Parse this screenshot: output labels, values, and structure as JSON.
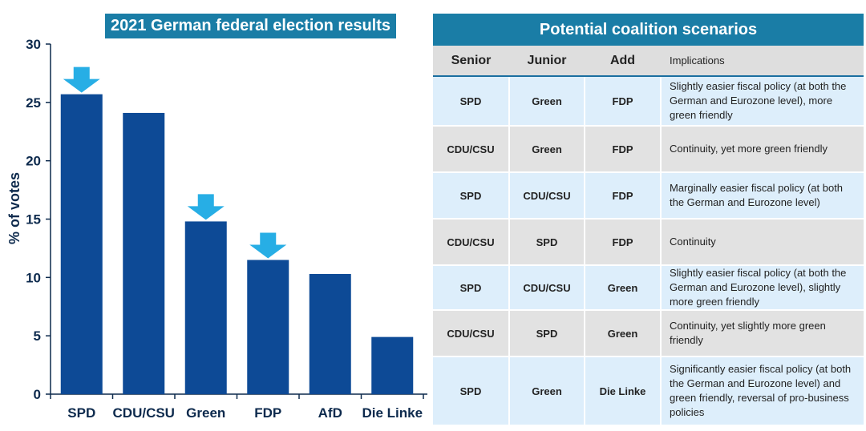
{
  "chart_data": {
    "type": "bar",
    "title": "2021 German federal election results",
    "ylabel": "% of votes",
    "xlabel": "",
    "categories": [
      "SPD",
      "CDU/CSU",
      "Green",
      "FDP",
      "AfD",
      "Die Linke"
    ],
    "values": [
      25.7,
      24.1,
      14.8,
      11.5,
      10.3,
      4.9
    ],
    "ylim": [
      0,
      30
    ],
    "yticks": [
      0,
      5,
      10,
      15,
      20,
      25,
      30
    ],
    "grid": false,
    "bar_color": "#0d4a96",
    "highlighted_categories": [
      "SPD",
      "Green",
      "FDP"
    ],
    "highlight_marker": "down-arrow-icon",
    "highlight_color": "#27aee5"
  },
  "table": {
    "title": "Potential coalition scenarios",
    "headers": {
      "senior": "Senior",
      "junior": "Junior",
      "add": "Add",
      "implications": "Implications"
    },
    "rows": [
      {
        "senior": "SPD",
        "junior": "Green",
        "add": "FDP",
        "implications": "Slightly easier fiscal policy (at both the German and Eurozone level), more green friendly"
      },
      {
        "senior": "CDU/CSU",
        "junior": "Green",
        "add": "FDP",
        "implications": "Continuity, yet more green friendly"
      },
      {
        "senior": "SPD",
        "junior": "CDU/CSU",
        "add": "FDP",
        "implications": "Marginally easier fiscal policy (at both the German and Eurozone level)"
      },
      {
        "senior": "CDU/CSU",
        "junior": "SPD",
        "add": "FDP",
        "implications": "Continuity"
      },
      {
        "senior": "SPD",
        "junior": "CDU/CSU",
        "add": "Green",
        "implications": "Slightly easier fiscal policy (at both the German and Eurozone level), slightly more green friendly"
      },
      {
        "senior": "CDU/CSU",
        "junior": "SPD",
        "add": "Green",
        "implications": "Continuity, yet slightly more green friendly"
      },
      {
        "senior": "SPD",
        "junior": "Green",
        "add": "Die Linke",
        "implications": "Significantly easier fiscal policy (at both the German and Eurozone level) and green friendly, reversal of pro-business policies"
      }
    ],
    "colors": {
      "header_bar": "#1a7da6",
      "row_spd": "#ddeefb",
      "row_cdu": "#e2e2e2"
    }
  }
}
